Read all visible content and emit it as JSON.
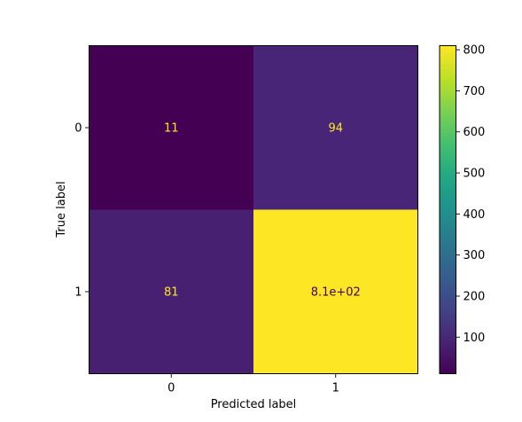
{
  "chart_data": {
    "type": "heatmap",
    "title": "",
    "xlabel": "Predicted label",
    "ylabel": "True label",
    "x_categories": [
      "0",
      "1"
    ],
    "y_categories": [
      "0",
      "1"
    ],
    "values": [
      [
        11,
        94
      ],
      [
        81,
        810
      ]
    ],
    "cell_labels": [
      [
        "11",
        "94"
      ],
      [
        "81",
        "8.1e+02"
      ]
    ],
    "colormap": "viridis",
    "colorbar": {
      "min": 11,
      "max": 810,
      "ticks": [
        100,
        200,
        300,
        400,
        500,
        600,
        700,
        800
      ],
      "tick_labels": [
        "100",
        "200",
        "300",
        "400",
        "500",
        "600",
        "700",
        "800"
      ]
    },
    "cell_text_colors": {
      "on_dark": "#fde725",
      "on_light": "#440154"
    }
  }
}
